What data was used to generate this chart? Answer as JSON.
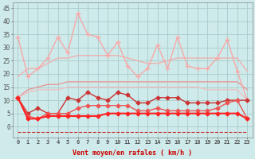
{
  "background_color": "#ceeaea",
  "grid_color": "#aacccc",
  "x_labels": [
    "0",
    "1",
    "2",
    "3",
    "4",
    "5",
    "6",
    "7",
    "8",
    "9",
    "10",
    "11",
    "12",
    "13",
    "14",
    "15",
    "16",
    "17",
    "18",
    "19",
    "20",
    "21",
    "22",
    "23"
  ],
  "xlabel": "Vent moyen/en rafales ( km/h )",
  "ylim": [
    -4,
    47
  ],
  "yticks": [
    0,
    5,
    10,
    15,
    20,
    25,
    30,
    35,
    40,
    45
  ],
  "series": [
    {
      "values": [
        34,
        19,
        22,
        26,
        34,
        28,
        43,
        35,
        34,
        27,
        32,
        23,
        19,
        22,
        31,
        22,
        34,
        23,
        22,
        22,
        26,
        33,
        21,
        10
      ],
      "color": "#f8a8a8",
      "marker": "+",
      "markersize": 4,
      "linewidth": 1.0
    },
    {
      "values": [
        19,
        22,
        22,
        24,
        26,
        26,
        27,
        27,
        27,
        27,
        27,
        26,
        25,
        24,
        24,
        25,
        26,
        26,
        26,
        26,
        26,
        26,
        26,
        21
      ],
      "color": "#f0b0b0",
      "marker": null,
      "markersize": 0,
      "linewidth": 1.0
    },
    {
      "values": [
        11,
        14,
        15,
        16,
        16,
        17,
        17,
        17,
        17,
        17,
        17,
        17,
        17,
        17,
        17,
        17,
        17,
        17,
        17,
        17,
        17,
        17,
        17,
        14
      ],
      "color": "#e89898",
      "marker": null,
      "markersize": 0,
      "linewidth": 1.0
    },
    {
      "values": [
        11,
        13,
        14,
        14,
        14,
        15,
        15,
        15,
        15,
        15,
        15,
        15,
        15,
        15,
        15,
        15,
        15,
        15,
        15,
        14,
        14,
        14,
        14,
        10
      ],
      "color": "#f0c0c0",
      "marker": null,
      "markersize": 0,
      "linewidth": 1.0
    },
    {
      "values": [
        11,
        5,
        7,
        5,
        5,
        11,
        10,
        13,
        11,
        10,
        13,
        12,
        9,
        9,
        11,
        11,
        11,
        9,
        9,
        9,
        9,
        10,
        10,
        10
      ],
      "color": "#cc3333",
      "marker": "D",
      "markersize": 2.5,
      "linewidth": 1.0
    },
    {
      "values": [
        11,
        4,
        3,
        5,
        5,
        5,
        7,
        8,
        8,
        8,
        8,
        8,
        6,
        6,
        7,
        6,
        6,
        6,
        6,
        6,
        7,
        9,
        10,
        3
      ],
      "color": "#ee5555",
      "marker": "D",
      "markersize": 2.5,
      "linewidth": 1.0
    },
    {
      "values": [
        11,
        3,
        3,
        4,
        4,
        4,
        4,
        4,
        4,
        5,
        5,
        5,
        5,
        5,
        5,
        5,
        5,
        5,
        5,
        5,
        5,
        5,
        5,
        3
      ],
      "color": "#ff2222",
      "marker": "D",
      "markersize": 2.5,
      "linewidth": 1.5
    },
    {
      "values": [
        -2,
        -2,
        -2,
        -2,
        -2,
        -2,
        -2,
        -2,
        -2,
        -2,
        -2,
        -2,
        -2,
        -2,
        -2,
        -2,
        -2,
        -2,
        -2,
        -2,
        -2,
        -2,
        -2,
        -2
      ],
      "color": "#cc2222",
      "marker": null,
      "markersize": 0,
      "linewidth": 0.8,
      "linestyle": "--"
    }
  ]
}
